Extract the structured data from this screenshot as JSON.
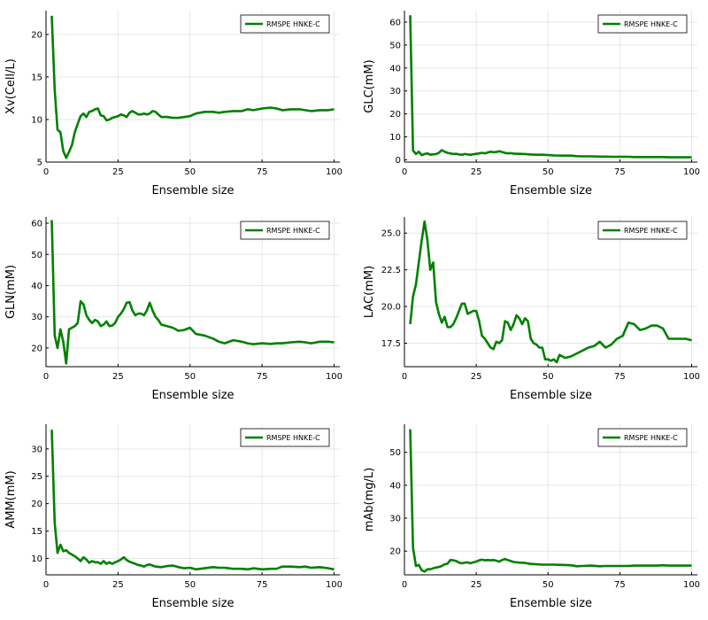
{
  "chart_data": [
    {
      "type": "line",
      "xlabel": "Ensemble size",
      "ylabel": "Xv(Cell/L)",
      "xlim": [
        0,
        102
      ],
      "ylim": [
        5,
        22.8
      ],
      "xticks": [
        0,
        25,
        50,
        75,
        100
      ],
      "yticks": [
        5,
        10,
        15,
        20
      ],
      "grid": true,
      "legend_position": "top-right",
      "series": [
        {
          "name": "RMSPE HNKE-C",
          "color": "#008000",
          "x": [
            2,
            3,
            4,
            5,
            6,
            7,
            8,
            9,
            10,
            11,
            12,
            13,
            14,
            15,
            16,
            17,
            18,
            19,
            20,
            21,
            22,
            23,
            24,
            25,
            26,
            27,
            28,
            29,
            30,
            31,
            32,
            33,
            34,
            35,
            36,
            37,
            38,
            39,
            40,
            42,
            44,
            46,
            48,
            50,
            52,
            55,
            58,
            60,
            62,
            65,
            68,
            70,
            72,
            75,
            78,
            80,
            82,
            85,
            88,
            90,
            92,
            95,
            98,
            100
          ],
          "y": [
            22.2,
            13.5,
            8.8,
            8.5,
            6.3,
            5.5,
            6.2,
            7,
            8.5,
            9.5,
            10.4,
            10.7,
            10.3,
            10.9,
            11,
            11.2,
            11.3,
            10.5,
            10.4,
            9.9,
            10,
            10.2,
            10.3,
            10.4,
            10.6,
            10.5,
            10.3,
            10.8,
            11,
            10.8,
            10.6,
            10.6,
            10.7,
            10.6,
            10.7,
            11,
            10.9,
            10.6,
            10.3,
            10.3,
            10.2,
            10.2,
            10.3,
            10.4,
            10.7,
            10.9,
            10.9,
            10.8,
            10.9,
            11,
            11,
            11.2,
            11.1,
            11.3,
            11.4,
            11.3,
            11.1,
            11.2,
            11.2,
            11.1,
            11,
            11.1,
            11.1,
            11.2
          ]
        }
      ]
    },
    {
      "type": "line",
      "xlabel": "Ensemble size",
      "ylabel": "GLC(mM)",
      "xlim": [
        0,
        102
      ],
      "ylim": [
        -1,
        65
      ],
      "xticks": [
        0,
        25,
        50,
        75,
        100
      ],
      "yticks": [
        0,
        10,
        20,
        30,
        40,
        50,
        60
      ],
      "grid": true,
      "legend_position": "top-right",
      "series": [
        {
          "name": "RMSPE HNKE-C",
          "color": "#008000",
          "x": [
            2,
            3,
            4,
            5,
            6,
            7,
            8,
            9,
            10,
            11,
            12,
            13,
            14,
            15,
            16,
            17,
            18,
            19,
            20,
            21,
            22,
            23,
            24,
            25,
            26,
            27,
            28,
            29,
            30,
            31,
            32,
            33,
            34,
            35,
            36,
            37,
            38,
            40,
            42,
            44,
            46,
            48,
            50,
            52,
            55,
            58,
            60,
            62,
            65,
            68,
            70,
            72,
            75,
            78,
            80,
            82,
            85,
            88,
            90,
            92,
            95,
            98,
            100
          ],
          "y": [
            63,
            4,
            2.5,
            3.5,
            2,
            2.5,
            2.8,
            2.2,
            2.4,
            2.5,
            3,
            4.2,
            3.5,
            3,
            2.8,
            2.5,
            2.6,
            2.3,
            2.2,
            2.5,
            2.3,
            2.2,
            2.4,
            2.6,
            2.8,
            3,
            2.8,
            3.2,
            3.5,
            3.3,
            3.4,
            3.7,
            3.4,
            3,
            2.8,
            2.9,
            2.7,
            2.6,
            2.5,
            2.3,
            2.2,
            2.2,
            2.1,
            1.9,
            1.8,
            1.8,
            1.6,
            1.5,
            1.5,
            1.4,
            1.4,
            1.3,
            1.3,
            1.3,
            1.2,
            1.2,
            1.2,
            1.2,
            1.2,
            1.1,
            1.1,
            1.1,
            1.1
          ]
        }
      ]
    },
    {
      "type": "line",
      "xlabel": "Ensemble size",
      "ylabel": "GLN(mM)",
      "xlim": [
        0,
        102
      ],
      "ylim": [
        14,
        62
      ],
      "xticks": [
        0,
        25,
        50,
        75,
        100
      ],
      "yticks": [
        20,
        30,
        40,
        50,
        60
      ],
      "grid": true,
      "legend_position": "top-right",
      "series": [
        {
          "name": "RMSPE HNKE-C",
          "color": "#008000",
          "x": [
            2,
            3,
            4,
            5,
            6,
            7,
            8,
            9,
            10,
            11,
            12,
            13,
            14,
            15,
            16,
            17,
            18,
            19,
            20,
            21,
            22,
            23,
            24,
            25,
            26,
            27,
            28,
            29,
            30,
            31,
            32,
            33,
            34,
            35,
            36,
            37,
            38,
            39,
            40,
            42,
            44,
            46,
            48,
            50,
            52,
            55,
            58,
            60,
            62,
            65,
            68,
            70,
            72,
            75,
            78,
            80,
            82,
            85,
            88,
            90,
            92,
            95,
            98,
            100
          ],
          "y": [
            61,
            24,
            20,
            26,
            22,
            15,
            26,
            26.5,
            27,
            28,
            35,
            34,
            30.5,
            29,
            28,
            29,
            28.5,
            27,
            27.5,
            28.5,
            27,
            27.2,
            28,
            30,
            31,
            32.5,
            34.5,
            34.7,
            32,
            30.5,
            31,
            31,
            30.5,
            32,
            34.5,
            32,
            30,
            29,
            27.5,
            27,
            26.5,
            25.5,
            25.8,
            26.5,
            24.5,
            24,
            23,
            22,
            21.5,
            22.5,
            22,
            21.5,
            21.2,
            21.5,
            21.3,
            21.5,
            21.5,
            21.8,
            22,
            21.8,
            21.5,
            22,
            22,
            21.8
          ]
        }
      ]
    },
    {
      "type": "line",
      "xlabel": "Ensemble size",
      "ylabel": "LAC(mM)",
      "xlim": [
        0,
        102
      ],
      "ylim": [
        15.9,
        26.1
      ],
      "xticks": [
        0,
        25,
        50,
        75,
        100
      ],
      "yticks": [
        17.5,
        20.0,
        22.5,
        25.0
      ],
      "grid": true,
      "legend_position": "top-right",
      "series": [
        {
          "name": "RMSPE HNKE-C",
          "color": "#008000",
          "x": [
            2,
            3,
            4,
            5,
            6,
            7,
            8,
            9,
            10,
            11,
            12,
            13,
            14,
            15,
            16,
            17,
            18,
            19,
            20,
            21,
            22,
            23,
            24,
            25,
            26,
            27,
            28,
            29,
            30,
            31,
            32,
            33,
            34,
            35,
            36,
            37,
            38,
            39,
            40,
            41,
            42,
            43,
            44,
            45,
            46,
            47,
            48,
            49,
            50,
            51,
            52,
            53,
            54,
            55,
            56,
            58,
            60,
            62,
            64,
            66,
            68,
            70,
            72,
            74,
            76,
            78,
            80,
            82,
            84,
            86,
            88,
            90,
            92,
            95,
            98,
            100
          ],
          "y": [
            18.8,
            20.7,
            21.5,
            23,
            24.5,
            25.8,
            24.5,
            22.5,
            23,
            20.3,
            19.5,
            18.9,
            19.3,
            18.6,
            18.6,
            18.8,
            19.2,
            19.7,
            20.2,
            20.2,
            19.5,
            19.6,
            19.7,
            19.7,
            19,
            18,
            17.8,
            17.5,
            17.2,
            17.1,
            17.6,
            17.5,
            17.7,
            19,
            18.9,
            18.4,
            18.8,
            19.4,
            19.2,
            18.8,
            19.2,
            19,
            17.8,
            17.5,
            17.4,
            17.2,
            17.2,
            16.4,
            16.4,
            16.3,
            16.4,
            16.2,
            16.7,
            16.6,
            16.5,
            16.6,
            16.8,
            17,
            17.2,
            17.3,
            17.6,
            17.2,
            17.4,
            17.8,
            18,
            18.9,
            18.8,
            18.4,
            18.5,
            18.7,
            18.7,
            18.5,
            17.8,
            17.8,
            17.8,
            17.7
          ]
        }
      ]
    },
    {
      "type": "line",
      "xlabel": "Ensemble size",
      "ylabel": "AMM(mM)",
      "xlim": [
        0,
        102
      ],
      "ylim": [
        7,
        34.5
      ],
      "xticks": [
        0,
        25,
        50,
        75,
        100
      ],
      "yticks": [
        10,
        15,
        20,
        25,
        30
      ],
      "grid": true,
      "legend_position": "top-right",
      "series": [
        {
          "name": "RMSPE HNKE-C",
          "color": "#008000",
          "x": [
            2,
            3,
            4,
            5,
            6,
            7,
            8,
            9,
            10,
            11,
            12,
            13,
            14,
            15,
            16,
            17,
            18,
            19,
            20,
            21,
            22,
            23,
            24,
            25,
            26,
            27,
            28,
            29,
            30,
            31,
            32,
            33,
            34,
            35,
            36,
            37,
            38,
            40,
            42,
            44,
            46,
            48,
            50,
            52,
            55,
            58,
            60,
            62,
            65,
            68,
            70,
            72,
            75,
            78,
            80,
            82,
            85,
            88,
            90,
            92,
            95,
            98,
            100
          ],
          "y": [
            33.5,
            16.5,
            11,
            12.5,
            11.3,
            11.5,
            11,
            10.7,
            10.4,
            10,
            9.5,
            10.2,
            9.8,
            9.2,
            9.5,
            9.3,
            9.3,
            9.0,
            9.5,
            9.0,
            9.3,
            9.0,
            9.3,
            9.5,
            9.8,
            10.2,
            9.7,
            9.4,
            9.2,
            9.0,
            8.8,
            8.7,
            8.5,
            8.8,
            8.9,
            8.7,
            8.5,
            8.4,
            8.6,
            8.7,
            8.4,
            8.2,
            8.3,
            8.0,
            8.2,
            8.4,
            8.3,
            8.3,
            8.1,
            8.1,
            8.0,
            8.2,
            8.0,
            8.1,
            8.1,
            8.5,
            8.5,
            8.4,
            8.5,
            8.3,
            8.4,
            8.2,
            8.0
          ]
        }
      ]
    },
    {
      "type": "line",
      "xlabel": "Ensemble size",
      "ylabel": "mAb(mg/L)",
      "xlim": [
        0,
        102
      ],
      "ylim": [
        12.8,
        58.5
      ],
      "xticks": [
        0,
        25,
        50,
        75,
        100
      ],
      "yticks": [
        20,
        30,
        40,
        50
      ],
      "grid": true,
      "legend_position": "top-right",
      "series": [
        {
          "name": "RMSPE HNKE-C",
          "color": "#008000",
          "x": [
            2,
            3,
            4,
            5,
            6,
            7,
            8,
            9,
            10,
            11,
            12,
            13,
            14,
            15,
            16,
            17,
            18,
            19,
            20,
            21,
            22,
            23,
            24,
            25,
            26,
            27,
            28,
            29,
            30,
            31,
            32,
            33,
            34,
            35,
            36,
            37,
            38,
            40,
            42,
            44,
            46,
            48,
            50,
            52,
            55,
            58,
            60,
            62,
            65,
            68,
            70,
            72,
            75,
            78,
            80,
            82,
            85,
            88,
            90,
            92,
            95,
            98,
            100
          ],
          "y": [
            57,
            21,
            15.5,
            15.8,
            14.2,
            13.8,
            14.5,
            14.5,
            14.8,
            15,
            15.2,
            15.5,
            16,
            16.2,
            17.3,
            17.2,
            17,
            16.5,
            16.3,
            16.5,
            16.6,
            16.3,
            16.6,
            16.8,
            17.2,
            17.4,
            17.2,
            17.3,
            17.2,
            17.3,
            17.1,
            16.8,
            17.3,
            17.6,
            17.3,
            17.0,
            16.7,
            16.5,
            16.4,
            16.1,
            16.0,
            15.9,
            15.9,
            15.9,
            15.8,
            15.7,
            15.4,
            15.5,
            15.6,
            15.4,
            15.5,
            15.5,
            15.5,
            15.5,
            15.6,
            15.6,
            15.6,
            15.6,
            15.7,
            15.6,
            15.6,
            15.6,
            15.6
          ]
        }
      ]
    }
  ]
}
